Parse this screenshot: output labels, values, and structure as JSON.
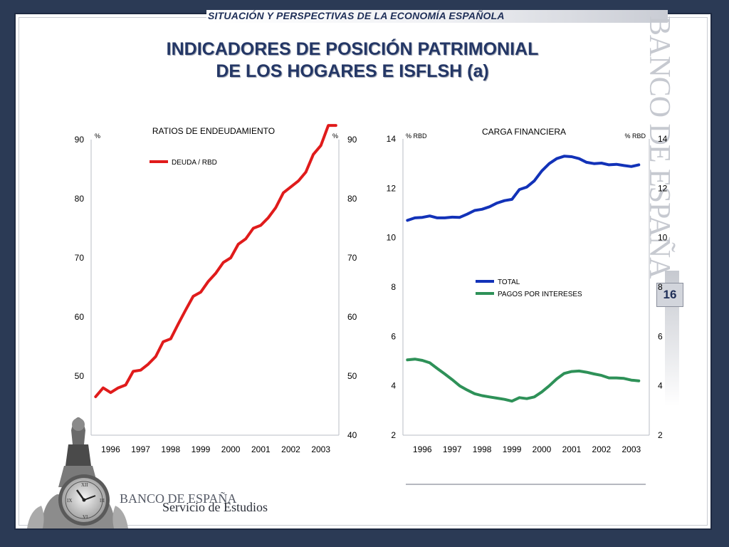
{
  "header": {
    "subtitle": "SITUACIÓN Y PERSPECTIVAS DE LA ECONOMÍA ESPAÑOLA",
    "title_line1": "INDICADORES DE POSICIÓN PATRIMONIAL",
    "title_line2": "DE LOS HOGARES E ISFLSH (a)"
  },
  "branding": {
    "vertical_text": "BANCO DE ESPAÑA",
    "page_number": "16",
    "footer_brand": "BANCO DE ESPAÑA",
    "footer_dept": "Servicio de Estudios",
    "logo_icon": "clock-tower-icon"
  },
  "colors": {
    "background": "#2b3a55",
    "title": "#243766",
    "debt_series": "#e01b1b",
    "total_series": "#1232b8",
    "interest_series": "#2e9158"
  },
  "chart_data": [
    {
      "type": "line",
      "title": "RATIOS DE ENDEUDAMIENTO",
      "unit_left": "%",
      "unit_right": "%",
      "xlabel": "",
      "ylabel": "",
      "left_ylim": [
        40,
        90
      ],
      "left_ticks": [
        "90",
        "80",
        "70",
        "60",
        "50"
      ],
      "right_ticks": [
        "90",
        "80",
        "70",
        "60",
        "50",
        "40"
      ],
      "xlim": [
        1995.85,
        2004.1
      ],
      "categories": [
        "1996",
        "1997",
        "1998",
        "1999",
        "2000",
        "2001",
        "2002",
        "2003"
      ],
      "legend_position": "top-left",
      "series": [
        {
          "name": "DEUDA  / RBD",
          "color": "#e01b1b",
          "x": [
            1996.0,
            1996.25,
            1996.5,
            1996.75,
            1997.0,
            1997.25,
            1997.5,
            1997.75,
            1998.0,
            1998.25,
            1998.5,
            1998.75,
            1999.0,
            1999.25,
            1999.5,
            1999.75,
            2000.0,
            2000.25,
            2000.5,
            2000.75,
            2001.0,
            2001.25,
            2001.5,
            2001.75,
            2002.0,
            2002.25,
            2002.5,
            2002.75,
            2003.0,
            2003.25,
            2003.5,
            2003.75,
            2004.0
          ],
          "y": [
            46.5,
            48.0,
            47.2,
            48.0,
            48.5,
            50.8,
            51.0,
            52.0,
            53.3,
            55.8,
            56.3,
            58.8,
            61.2,
            63.5,
            64.2,
            66.0,
            67.4,
            69.2,
            70.0,
            72.3,
            73.2,
            75.0,
            75.5,
            76.8,
            78.5,
            81.0,
            82.0,
            83.0,
            84.5,
            87.5,
            89.0,
            92.4,
            92.4
          ]
        }
      ]
    },
    {
      "type": "line",
      "title": "CARGA FINANCIERA",
      "unit_left": "% RBD",
      "unit_right": "% RBD",
      "xlabel": "",
      "ylabel": "",
      "ylim": [
        2,
        14
      ],
      "left_ticks": [
        "14",
        "12",
        "10",
        "8",
        "6",
        "4",
        "2"
      ],
      "right_ticks": [
        "14",
        "12",
        "10",
        "8",
        "6",
        "4",
        "2"
      ],
      "xlim": [
        1995.85,
        2004.1
      ],
      "categories": [
        "1996",
        "1997",
        "1998",
        "1999",
        "2000",
        "2001",
        "2002",
        "2003"
      ],
      "legend_position": "center",
      "series": [
        {
          "name": "TOTAL",
          "color": "#1232b8",
          "x": [
            1996.0,
            1996.25,
            1996.5,
            1996.75,
            1997.0,
            1997.25,
            1997.5,
            1997.75,
            1998.0,
            1998.25,
            1998.5,
            1998.75,
            1999.0,
            1999.25,
            1999.5,
            1999.75,
            2000.0,
            2000.25,
            2000.5,
            2000.75,
            2001.0,
            2001.25,
            2001.5,
            2001.75,
            2002.0,
            2002.25,
            2002.5,
            2002.75,
            2003.0,
            2003.25,
            2003.5,
            2003.75
          ],
          "y": [
            10.7,
            10.8,
            10.82,
            10.88,
            10.8,
            10.8,
            10.83,
            10.82,
            10.95,
            11.1,
            11.15,
            11.25,
            11.4,
            11.5,
            11.55,
            11.95,
            12.05,
            12.3,
            12.7,
            13.0,
            13.2,
            13.3,
            13.28,
            13.2,
            13.05,
            13.0,
            13.02,
            12.95,
            12.97,
            12.92,
            12.88,
            12.95
          ]
        },
        {
          "name": "PAGOS POR INTERESES",
          "color": "#2e9158",
          "x": [
            1996.0,
            1996.25,
            1996.5,
            1996.75,
            1997.0,
            1997.25,
            1997.5,
            1997.75,
            1998.0,
            1998.25,
            1998.5,
            1998.75,
            1999.0,
            1999.25,
            1999.5,
            1999.75,
            2000.0,
            2000.25,
            2000.5,
            2000.75,
            2001.0,
            2001.25,
            2001.5,
            2001.75,
            2002.0,
            2002.25,
            2002.5,
            2002.75,
            2003.0,
            2003.25,
            2003.5,
            2003.75
          ],
          "y": [
            5.05,
            5.08,
            5.03,
            4.93,
            4.7,
            4.48,
            4.25,
            4.0,
            3.83,
            3.68,
            3.6,
            3.55,
            3.5,
            3.45,
            3.38,
            3.52,
            3.48,
            3.55,
            3.75,
            4.0,
            4.28,
            4.5,
            4.58,
            4.6,
            4.55,
            4.48,
            4.42,
            4.32,
            4.32,
            4.3,
            4.23,
            4.2
          ]
        }
      ]
    }
  ]
}
